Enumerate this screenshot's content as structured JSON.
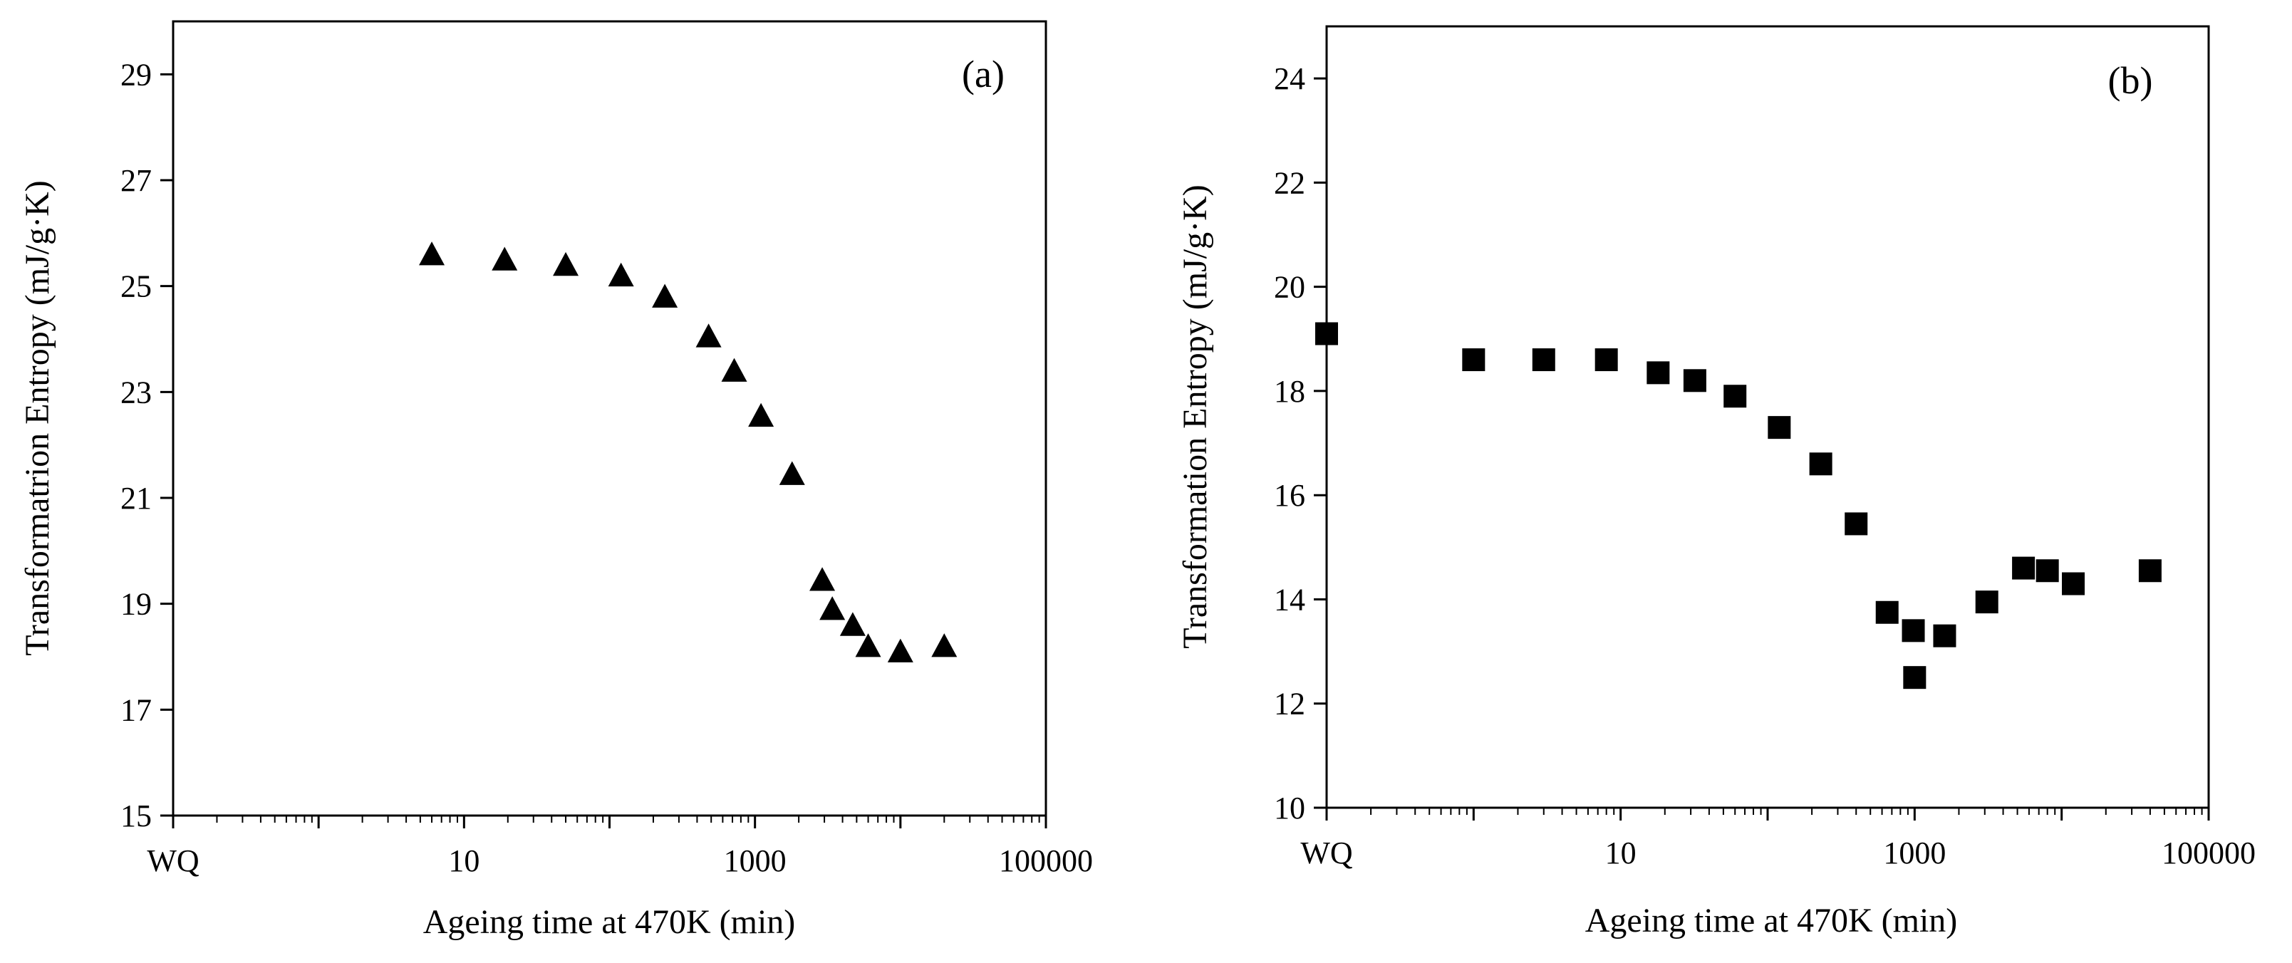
{
  "chart_data": [
    {
      "type": "scatter",
      "panel_label": "(a)",
      "xlabel": "Ageing time at 470K (min)",
      "ylabel": "Transformatrion Entropy (mJ/g·K)",
      "xscale": "log",
      "xlim": [
        0.1,
        100000
      ],
      "ylim": [
        15,
        30
      ],
      "yticks": [
        15,
        17,
        19,
        21,
        23,
        25,
        27,
        29
      ],
      "xtick_labels": [
        {
          "x": 0.1,
          "label": "WQ"
        },
        {
          "x": 10,
          "label": "10"
        },
        {
          "x": 1000,
          "label": "1000"
        },
        {
          "x": 100000,
          "label": "100000"
        }
      ],
      "marker": "triangle",
      "series": [
        {
          "name": "Transformation entropy",
          "points": [
            {
              "x": 6,
              "y": 25.6
            },
            {
              "x": 19,
              "y": 25.5
            },
            {
              "x": 50,
              "y": 25.4
            },
            {
              "x": 120,
              "y": 25.2
            },
            {
              "x": 240,
              "y": 24.8
            },
            {
              "x": 480,
              "y": 24.05
            },
            {
              "x": 720,
              "y": 23.4
            },
            {
              "x": 1100,
              "y": 22.55
            },
            {
              "x": 1800,
              "y": 21.45
            },
            {
              "x": 2900,
              "y": 19.45
            },
            {
              "x": 3400,
              "y": 18.9
            },
            {
              "x": 4700,
              "y": 18.6
            },
            {
              "x": 6000,
              "y": 18.2
            },
            {
              "x": 10000,
              "y": 18.1
            },
            {
              "x": 20000,
              "y": 18.2
            }
          ]
        }
      ]
    },
    {
      "type": "scatter",
      "panel_label": "(b)",
      "xlabel": "Ageing time at 470K (min)",
      "ylabel": "Transformation Entropy (mJ/g·K)",
      "xscale": "log",
      "xlim": [
        0.1,
        100000
      ],
      "ylim": [
        10,
        25
      ],
      "yticks": [
        10,
        12,
        14,
        16,
        18,
        20,
        22,
        24
      ],
      "xtick_labels": [
        {
          "x": 0.1,
          "label": "WQ"
        },
        {
          "x": 10,
          "label": "10"
        },
        {
          "x": 1000,
          "label": "1000"
        },
        {
          "x": 100000,
          "label": "100000"
        }
      ],
      "marker": "square",
      "series": [
        {
          "name": "Transformation entropy",
          "points": [
            {
              "x": 0.1,
              "y": 19.1
            },
            {
              "x": 1,
              "y": 18.6
            },
            {
              "x": 3,
              "y": 18.6
            },
            {
              "x": 8,
              "y": 18.6
            },
            {
              "x": 18,
              "y": 18.35
            },
            {
              "x": 32,
              "y": 18.2
            },
            {
              "x": 60,
              "y": 17.9
            },
            {
              "x": 120,
              "y": 17.3
            },
            {
              "x": 230,
              "y": 16.6
            },
            {
              "x": 400,
              "y": 15.45
            },
            {
              "x": 650,
              "y": 13.75
            },
            {
              "x": 980,
              "y": 13.4
            },
            {
              "x": 1000,
              "y": 12.5
            },
            {
              "x": 1600,
              "y": 13.3
            },
            {
              "x": 3100,
              "y": 13.95
            },
            {
              "x": 5500,
              "y": 14.6
            },
            {
              "x": 8000,
              "y": 14.55
            },
            {
              "x": 12000,
              "y": 14.3
            },
            {
              "x": 40000,
              "y": 14.55
            }
          ]
        }
      ]
    }
  ]
}
